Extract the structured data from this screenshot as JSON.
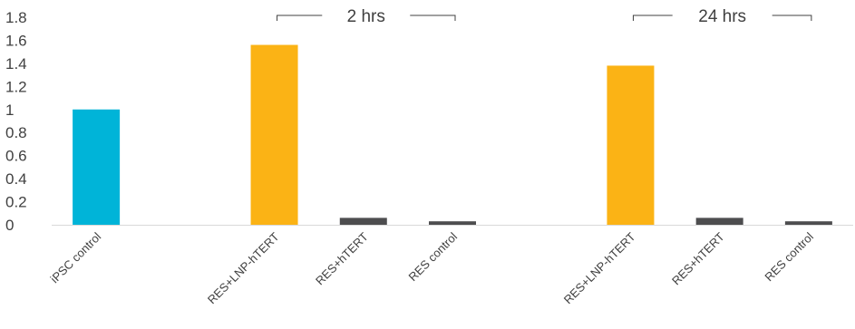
{
  "chart_data": {
    "type": "bar",
    "categories": [
      "iPSC control",
      "",
      "RES+LNP-hTERT",
      "RES+hTERT",
      "RES control",
      "",
      "RES+LNP-hTERT",
      "RES+hTERT",
      "RES control"
    ],
    "values": [
      1.0,
      null,
      1.56,
      0.06,
      0.03,
      null,
      1.38,
      0.06,
      0.03
    ],
    "colors": [
      "#00B4D8",
      null,
      "#FBB315",
      "#4D4D4F",
      "#4D4D4F",
      null,
      "#FBB315",
      "#4D4D4F",
      "#4D4D4F"
    ],
    "ylim": [
      0,
      1.8
    ],
    "yticks": [
      "0",
      "0.2",
      "0.4",
      "0.6",
      "0.8",
      "1",
      "1.2",
      "1.4",
      "1.6",
      "1.8"
    ],
    "grid": false,
    "group_labels": [
      {
        "label": "2 hrs",
        "from": 2,
        "to": 4
      },
      {
        "label": "24 hrs",
        "from": 6,
        "to": 8
      }
    ]
  }
}
